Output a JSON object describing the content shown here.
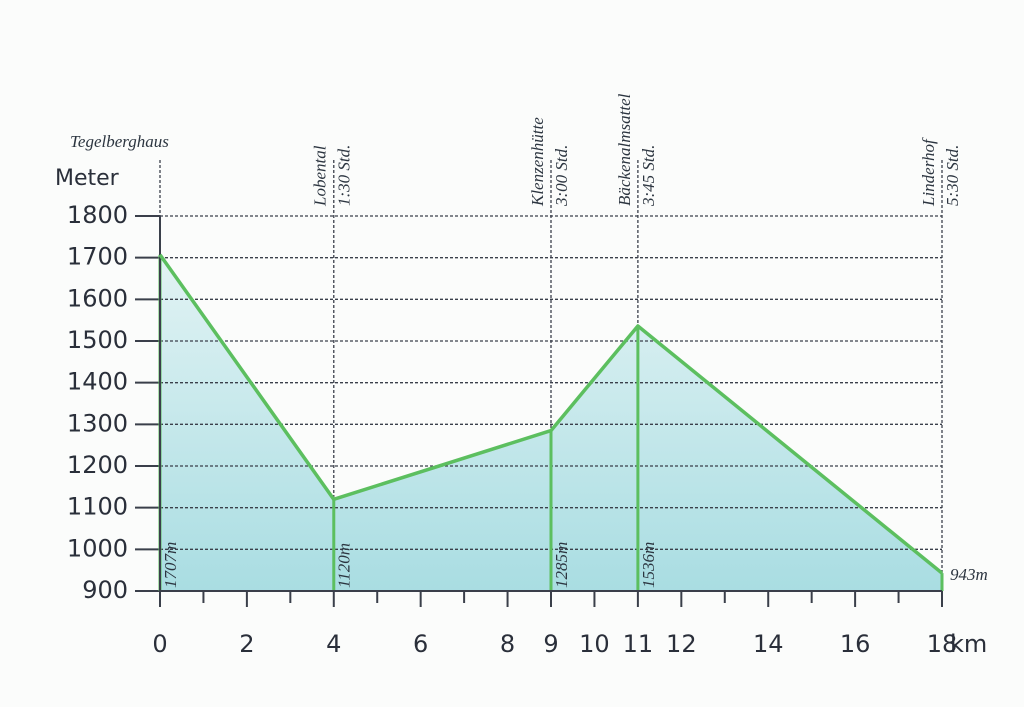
{
  "chart_data": {
    "type": "area",
    "title": "Tegelberghaus",
    "y_label": "Meter",
    "x_label": "km",
    "x": [
      0,
      4,
      9,
      11,
      18
    ],
    "values": [
      1707,
      1120,
      1285,
      1536,
      943
    ],
    "value_labels": [
      "1707m",
      "1120m",
      "1285m",
      "1536m",
      "943m"
    ],
    "waypoints": [
      {
        "name": "Lobental",
        "time": "1:30 Std."
      },
      {
        "name": "Klenzenhütte",
        "time": "3:00 Std."
      },
      {
        "name": "Bäckenalmsattel",
        "time": "3:45 Std."
      },
      {
        "name": "Linderhof",
        "time": "5:30 Std."
      }
    ],
    "color": "#5cbf5f",
    "fill": "#bfe6e9",
    "xlim": [
      0,
      18
    ],
    "ylim": [
      900,
      1800
    ],
    "xticks": [
      0,
      2,
      4,
      6,
      8,
      9,
      10,
      11,
      12,
      14,
      16,
      18
    ],
    "xticks_minor": [
      1,
      3,
      5,
      7,
      13,
      15,
      17
    ],
    "yticks": [
      900,
      1000,
      1100,
      1200,
      1300,
      1400,
      1500,
      1600,
      1700,
      1800
    ],
    "grid": true
  }
}
